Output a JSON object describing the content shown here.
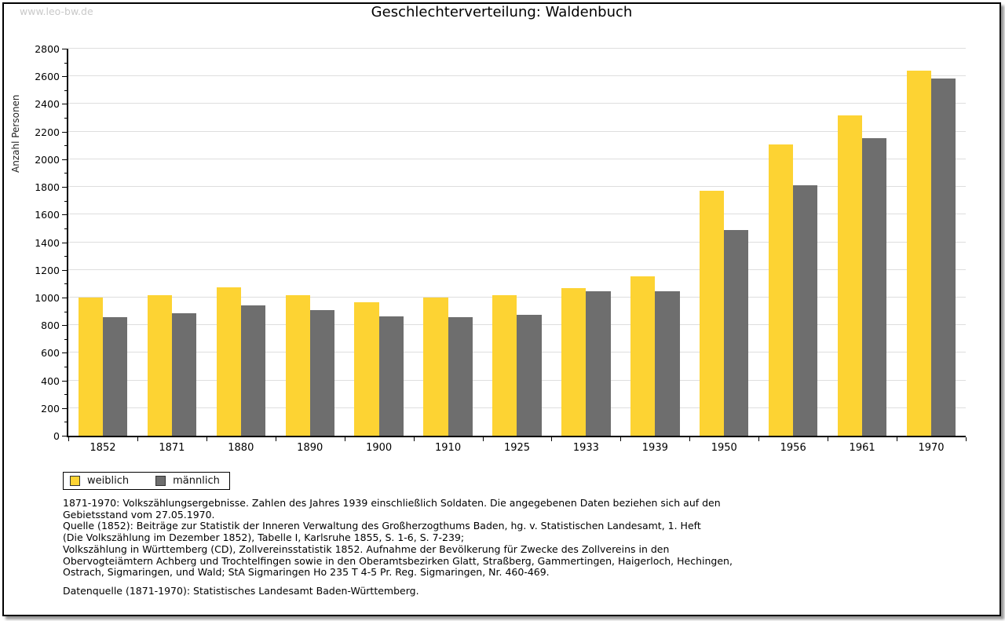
{
  "page": {
    "watermark": "www.leo-bw.de",
    "title": "Geschlechterverteilung: Waldenbuch"
  },
  "chart_data": {
    "type": "bar",
    "title": "Geschlechterverteilung: Waldenbuch",
    "xlabel": "",
    "ylabel": "Anzahl Personen",
    "ylim": [
      0,
      2800
    ],
    "ytick_major_step": 200,
    "ytick_minor_step": 100,
    "grid": "horizontal major gridlines",
    "grid_color": "#dedede",
    "legend_position": "bottom-left",
    "categories": [
      "1852",
      "1871",
      "1880",
      "1890",
      "1900",
      "1910",
      "1925",
      "1933",
      "1939",
      "1950",
      "1956",
      "1961",
      "1970"
    ],
    "series": [
      {
        "name": "weiblich",
        "color": "#FDD333",
        "values": [
          1000,
          1015,
          1075,
          1015,
          965,
          1000,
          1015,
          1065,
          1155,
          1770,
          2105,
          2320,
          2640
        ]
      },
      {
        "name": "männlich",
        "color": "#6E6E6E",
        "values": [
          860,
          885,
          945,
          910,
          865,
          860,
          875,
          1045,
          1045,
          1490,
          1810,
          2150,
          2585
        ]
      }
    ]
  },
  "footnotes": {
    "lines": [
      "1871-1970: Volkszählungsergebnisse. Zahlen des Jahres 1939 einschließlich Soldaten. Die angegebenen Daten beziehen sich auf den",
      "Gebietsstand vom 27.05.1970.",
      "Quelle (1852): Beiträge zur Statistik der Inneren Verwaltung des Großherzogthums Baden, hg. v. Statistischen Landesamt, 1. Heft",
      "(Die Volkszählung im Dezember 1852), Tabelle I, Karlsruhe 1855, S. 1-6, S. 7-239;",
      "Volkszählung in Württemberg (CD), Zollvereinsstatistik 1852. Aufnahme der Bevölkerung für Zwecke des Zollvereins in den",
      "Obervogteiämtern Achberg und Trochtelfingen sowie in den Oberamtsbezirken Glatt, Straßberg, Gammertingen, Haigerloch, Hechingen,",
      "Ostrach, Sigmaringen, und Wald; StA Sigmaringen Ho 235 T 4-5 Pr. Reg. Sigmaringen, Nr. 460-469."
    ],
    "datasource": "Datenquelle (1871-1970): Statistisches Landesamt Baden-Württemberg."
  }
}
